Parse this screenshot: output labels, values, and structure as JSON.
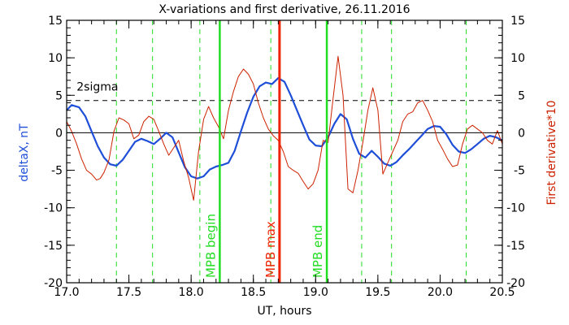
{
  "chart_data": {
    "type": "line",
    "title": "X-variations and first derivative, 26.11.2016",
    "xlabel": "UT, hours",
    "ylabel_left": "deltaX, nT",
    "ylabel_right": "First derivative*10",
    "xlim": [
      17.0,
      20.5
    ],
    "ylim": [
      -20,
      15
    ],
    "x_ticks": [
      "17.0",
      "17.5",
      "18.0",
      "18.5",
      "19.0",
      "19.5",
      "20.0",
      "20.5"
    ],
    "y_ticks": [
      "15",
      "10",
      "5",
      "0",
      "-5",
      "-10",
      "-15",
      "-20"
    ],
    "grid": false,
    "colors": {
      "deltaX": "#1f4fd8",
      "derivative": "#cc2200",
      "mpb_boundary": "#22dd22",
      "mpb_max": "#ee2200",
      "axes": "#000000"
    },
    "reference_lines": [
      {
        "label": "2sigma",
        "y": 4.3,
        "style": "dashed"
      },
      {
        "label": "",
        "y": 0,
        "style": "solid"
      }
    ],
    "markers": [
      {
        "label": "MPB begin",
        "x": 18.23,
        "color": "#22dd22"
      },
      {
        "label": "MPB max",
        "x": 18.71,
        "color": "#ee2200"
      },
      {
        "label": "MPB end",
        "x": 19.09,
        "color": "#22dd22"
      }
    ],
    "dashed_verticals": [
      17.4,
      17.69,
      18.07,
      18.64,
      19.37,
      19.61,
      20.21
    ],
    "series": [
      {
        "key": "deltaX",
        "x": [
          17.0,
          17.04,
          17.1,
          17.15,
          17.2,
          17.25,
          17.3,
          17.35,
          17.4,
          17.45,
          17.5,
          17.55,
          17.6,
          17.65,
          17.7,
          17.75,
          17.8,
          17.85,
          17.9,
          17.95,
          18.0,
          18.05,
          18.1,
          18.15,
          18.2,
          18.25,
          18.3,
          18.35,
          18.4,
          18.45,
          18.5,
          18.55,
          18.6,
          18.65,
          18.7,
          18.75,
          18.8,
          18.85,
          18.9,
          18.95,
          19.0,
          19.05,
          19.1,
          19.15,
          19.2,
          19.25,
          19.3,
          19.35,
          19.4,
          19.45,
          19.5,
          19.55,
          19.6,
          19.65,
          19.7,
          19.75,
          19.8,
          19.85,
          19.9,
          19.95,
          20.0,
          20.05,
          20.1,
          20.15,
          20.2,
          20.25,
          20.3,
          20.35,
          20.4,
          20.45,
          20.5
        ],
        "values": [
          3.0,
          3.7,
          3.4,
          2.2,
          0.2,
          -1.8,
          -3.3,
          -4.2,
          -4.4,
          -3.6,
          -2.4,
          -1.2,
          -0.8,
          -1.1,
          -1.5,
          -0.8,
          0.0,
          -0.6,
          -2.6,
          -4.6,
          -5.8,
          -6.1,
          -5.8,
          -4.9,
          -4.5,
          -4.3,
          -4.0,
          -2.4,
          0.2,
          2.7,
          4.8,
          6.2,
          6.7,
          6.5,
          7.3,
          6.8,
          5.0,
          3.0,
          1.0,
          -0.9,
          -1.7,
          -1.8,
          -0.6,
          1.2,
          2.5,
          1.8,
          -0.8,
          -2.8,
          -3.3,
          -2.4,
          -3.2,
          -4.1,
          -4.4,
          -3.9,
          -3.0,
          -2.2,
          -1.3,
          -0.4,
          0.5,
          0.9,
          0.8,
          -0.2,
          -1.6,
          -2.5,
          -2.7,
          -2.2,
          -1.5,
          -0.8,
          -0.4,
          -0.6,
          -1.0
        ]
      },
      {
        "key": "derivative",
        "x": [
          17.0,
          17.04,
          17.08,
          17.12,
          17.16,
          17.2,
          17.24,
          17.27,
          17.3,
          17.34,
          17.38,
          17.42,
          17.46,
          17.5,
          17.54,
          17.58,
          17.62,
          17.66,
          17.7,
          17.74,
          17.78,
          17.82,
          17.86,
          17.9,
          17.94,
          17.98,
          18.02,
          18.06,
          18.1,
          18.14,
          18.18,
          18.22,
          18.26,
          18.3,
          18.34,
          18.38,
          18.42,
          18.46,
          18.5,
          18.54,
          18.58,
          18.62,
          18.66,
          18.7,
          18.74,
          18.78,
          18.82,
          18.86,
          18.9,
          18.94,
          18.98,
          19.02,
          19.06,
          19.1,
          19.14,
          19.18,
          19.22,
          19.26,
          19.3,
          19.34,
          19.38,
          19.42,
          19.46,
          19.5,
          19.54,
          19.58,
          19.62,
          19.66,
          19.7,
          19.74,
          19.78,
          19.82,
          19.86,
          19.9,
          19.94,
          19.98,
          20.02,
          20.06,
          20.1,
          20.14,
          20.18,
          20.22,
          20.26,
          20.3,
          20.34,
          20.38,
          20.42,
          20.46,
          20.5
        ],
        "values": [
          1.5,
          0.2,
          -1.5,
          -3.5,
          -5.0,
          -5.5,
          -6.3,
          -6.1,
          -5.3,
          -3.6,
          0.2,
          2.0,
          1.7,
          1.2,
          -0.8,
          -0.3,
          1.5,
          2.2,
          1.8,
          0.2,
          -1.5,
          -3.0,
          -2.0,
          -1.0,
          -3.8,
          -6.0,
          -9.0,
          -2.5,
          1.8,
          3.5,
          2.0,
          0.8,
          -0.8,
          3.0,
          5.5,
          7.5,
          8.5,
          7.8,
          6.5,
          4.0,
          2.0,
          0.5,
          -0.4,
          -1.0,
          -2.5,
          -4.5,
          -5.0,
          -5.4,
          -6.5,
          -7.5,
          -6.8,
          -5.0,
          -1.0,
          -1.3,
          4.5,
          10.2,
          5.0,
          -7.5,
          -8.0,
          -5.0,
          -1.2,
          3.0,
          6.0,
          3.0,
          -5.5,
          -4.0,
          -2.5,
          -1.0,
          1.5,
          2.5,
          2.8,
          4.0,
          4.3,
          3.0,
          1.5,
          -1.0,
          -2.2,
          -3.5,
          -4.5,
          -4.3,
          -1.5,
          0.5,
          1.0,
          0.5,
          0.0,
          -1.0,
          -1.5,
          0.3,
          -1.5
        ]
      }
    ]
  }
}
